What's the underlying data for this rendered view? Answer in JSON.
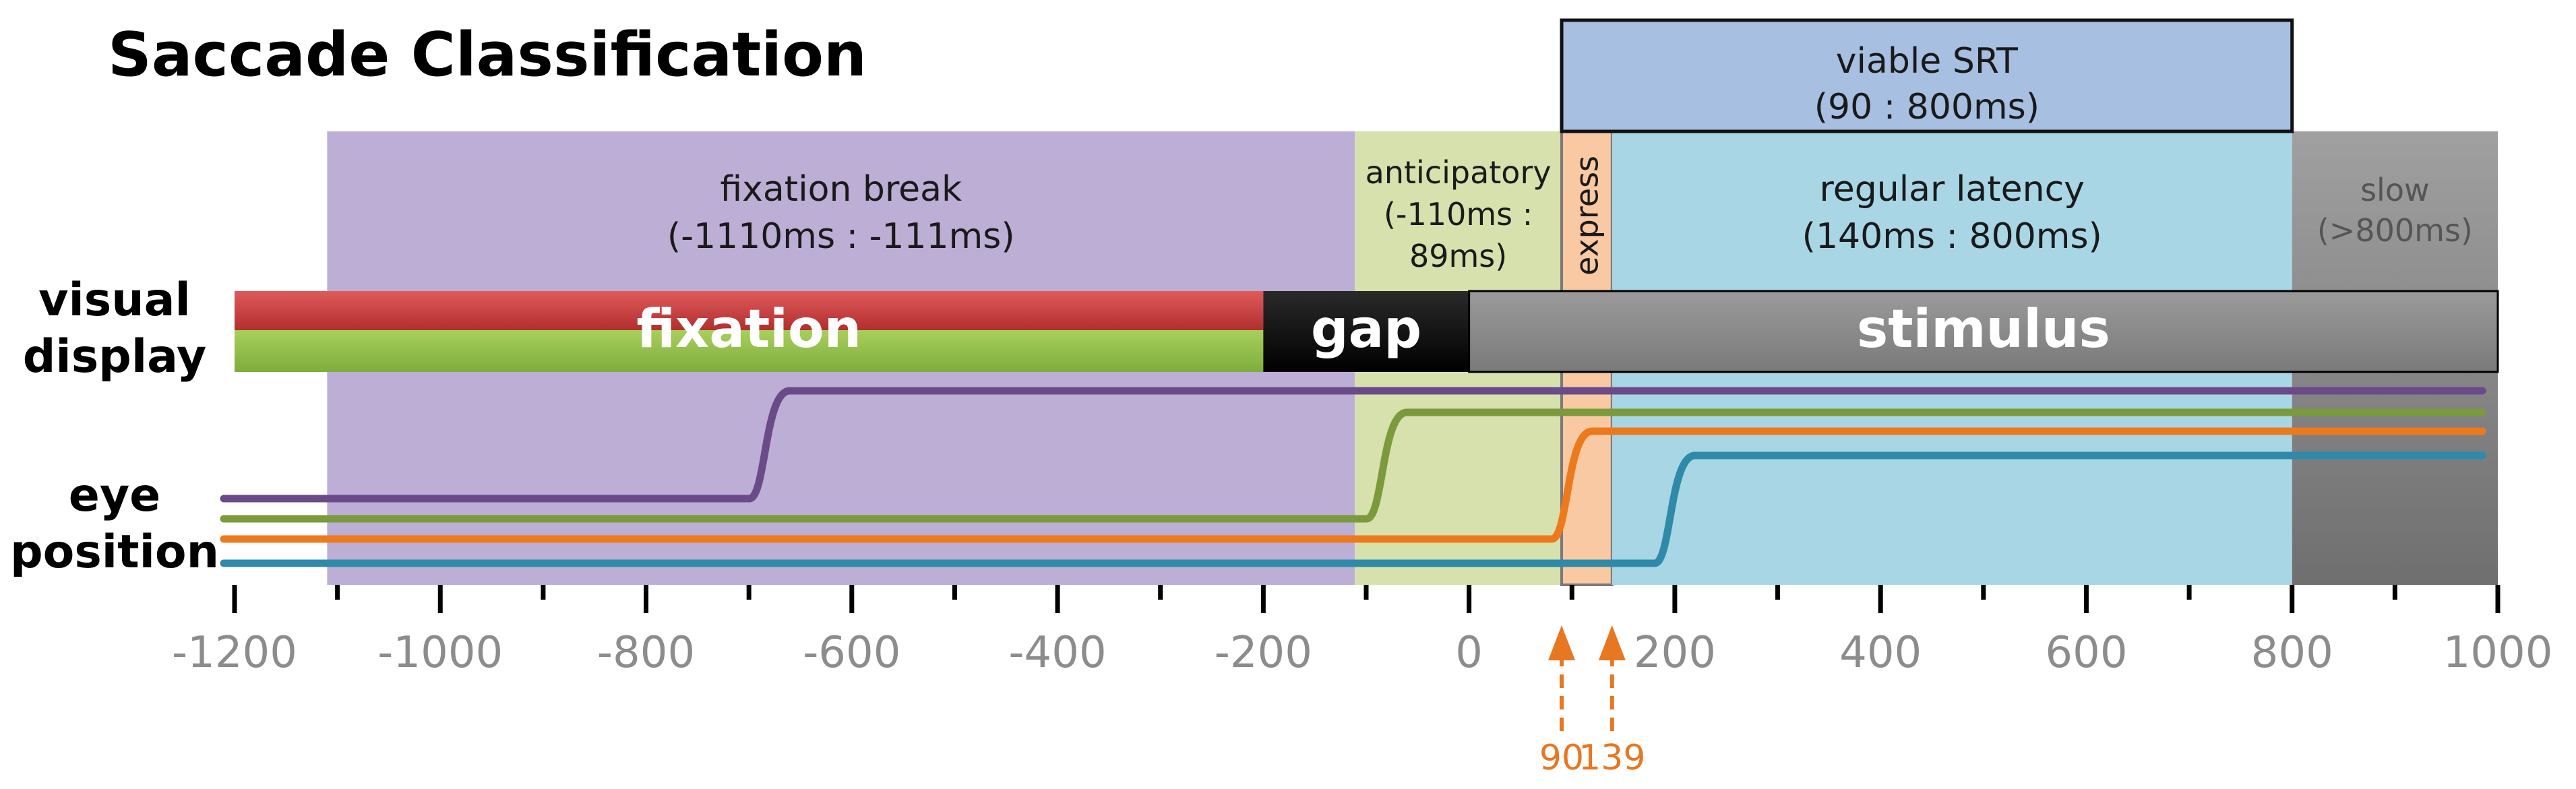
{
  "title": "Saccade Classification",
  "side_labels": {
    "visual_line1": "visual",
    "visual_line2": "display",
    "eye_line1": "eye",
    "eye_line2": "position"
  },
  "zones": {
    "fixation_break": {
      "line1": "fixation break",
      "line2": "(-1110ms : -111ms)",
      "from": -1110,
      "to": -111,
      "color": "#bcaed4"
    },
    "anticipatory": {
      "line1": "anticipatory",
      "line2": "(-110ms :",
      "line3": "89ms)",
      "from": -111,
      "to": 90,
      "color": "#d6e1ad"
    },
    "express": {
      "label": "express",
      "from": 90,
      "to": 139,
      "color": "#f9c9a3"
    },
    "regular": {
      "line1": "regular latency",
      "line2": "(140ms : 800ms)",
      "from": 139,
      "to": 800,
      "color": "#a8d6e5"
    },
    "slow": {
      "line1": "slow",
      "line2": "(>800ms)",
      "from": 800,
      "to": 1000,
      "color": "#8c8c8c"
    },
    "viable": {
      "line1": "viable SRT",
      "line2": "(90 : 800ms)",
      "from": 90,
      "to": 800,
      "color": "#a7bfe0"
    }
  },
  "display": {
    "fixation": {
      "label": "fixation",
      "from": -1200,
      "to": -200
    },
    "gap": {
      "label": "gap",
      "from": -200,
      "to": 0
    },
    "stimulus": {
      "label": "stimulus",
      "from": 0,
      "to": 1000
    }
  },
  "axis": {
    "min": -1200,
    "max": 1000,
    "labeled_ticks": [
      "-1200",
      "-1000",
      "-800",
      "-600",
      "-400",
      "-200",
      "0",
      "200",
      "400",
      "600",
      "800",
      "1000"
    ],
    "minor_ticks": [
      -1100,
      -900,
      -700,
      -500,
      -300,
      -100,
      100,
      300,
      500,
      700,
      900
    ]
  },
  "markers": [
    {
      "value": 90,
      "label": "90"
    },
    {
      "value": 139,
      "label": "139"
    }
  ],
  "traces": [
    {
      "name": "purple",
      "color": "#6b4a8a",
      "saccade_time": -680
    },
    {
      "name": "green",
      "color": "#7a9a3c",
      "saccade_time": -80
    },
    {
      "name": "orange",
      "color": "#ec7a1c",
      "saccade_time": 100
    },
    {
      "name": "teal",
      "color": "#2e8aa8",
      "saccade_time": 200
    }
  ]
}
